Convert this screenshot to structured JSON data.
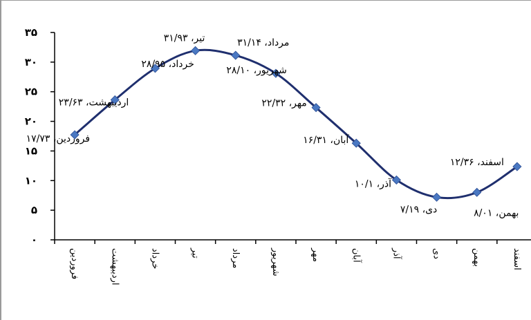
{
  "colors": {
    "line": "#1f2f6e",
    "marker": "#4a78c2",
    "axis": "#000000"
  },
  "chart_data": {
    "type": "line",
    "ylim": [
      0,
      35
    ],
    "yticks": [
      0,
      5,
      10,
      15,
      20,
      25,
      30,
      35
    ],
    "ytick_labels": [
      "۰",
      "۵",
      "۱۰",
      "۱۵",
      "۲۰",
      "۲۵",
      "۳۰",
      "۳۵"
    ],
    "categories": [
      "فروردین",
      "اردیبهشت",
      "خرداد",
      "تیر",
      "مرداد",
      "شهریور",
      "مهر",
      "آبان",
      "آذر",
      "دی",
      "بهمن",
      "اسفند"
    ],
    "values": [
      17.73,
      23.63,
      28.95,
      31.93,
      31.14,
      28.1,
      22.32,
      16.31,
      10.1,
      7.19,
      8.01,
      12.36
    ],
    "data_labels": [
      "فروردین، ۱۷/۷۳",
      "اردیبهشت، ۲۳/۶۳",
      "خرداد، ۲۸/۹۵",
      "تیر، ۳۱/۹۳",
      "مرداد، ۳۱/۱۴",
      "شهریور، ۲۸/۱۰",
      "مهر، ۲۲/۳۲",
      "آبان، ۱۶/۳۱",
      "آذر، ۱۰/۱",
      "دی، ۷/۱۹",
      "بهمن، ۸/۰۱",
      "اسفند، ۱۲/۳۶"
    ],
    "grid": false,
    "legend": "none"
  }
}
